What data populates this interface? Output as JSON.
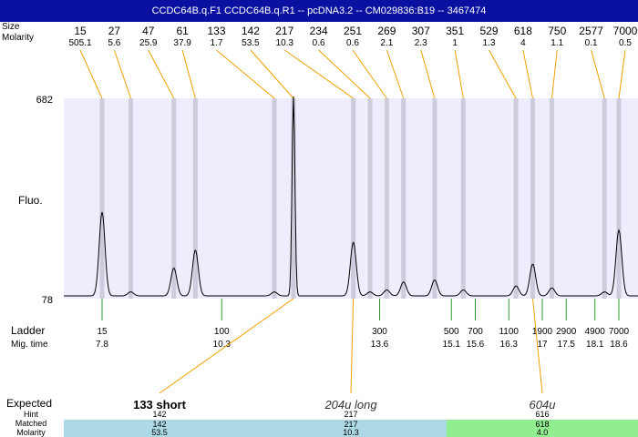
{
  "title": "CCDC64B.q.F1  CCDC64B.q.R1 -- pcDNA3.2 -- CM029836:B19 -- 3467474",
  "colors": {
    "title_bg": "#0a10a0",
    "plot_bg": "#ededfb",
    "band": "#ccccdd",
    "connector": "#f0a000",
    "ladder_tick": "#2a9a2a",
    "trace": "#000000",
    "bar_blue": "#add8e6",
    "bar_green": "#90ee90"
  },
  "labels": {
    "size": "Size",
    "molarity": "Molarity",
    "fluo": "Fluo.",
    "ladder": "Ladder",
    "mig_time": "Mig. time",
    "expected": "Expected",
    "hint": "Hint",
    "matched": "Matched",
    "molarity_row": "Molarity"
  },
  "chart_data": {
    "type": "line",
    "y_axis": {
      "min": 78,
      "max": 682,
      "ticks": [
        682,
        78
      ]
    },
    "x_axis": {
      "min": 7,
      "max": 19,
      "unit": "migration time"
    },
    "peaks": [
      {
        "size": "15",
        "molarity": "505.1",
        "time": 7.8,
        "height": 0.42
      },
      {
        "size": "27",
        "molarity": "5.6",
        "time": 8.4,
        "height": 0.02
      },
      {
        "size": "47",
        "molarity": "25.9",
        "time": 9.3,
        "height": 0.14
      },
      {
        "size": "61",
        "molarity": "37.9",
        "time": 9.75,
        "height": 0.23
      },
      {
        "size": "133",
        "molarity": "1.7",
        "time": 11.4,
        "height": 0.02
      },
      {
        "size": "142",
        "molarity": "53.5",
        "time": 11.8,
        "height": 1.0
      },
      {
        "size": "217",
        "molarity": "10.3",
        "time": 13.05,
        "height": 0.27
      },
      {
        "size": "234",
        "molarity": "0.6",
        "time": 13.4,
        "height": 0.02
      },
      {
        "size": "251",
        "molarity": "0.6",
        "time": 13.75,
        "height": 0.03
      },
      {
        "size": "269",
        "molarity": "2.1",
        "time": 14.1,
        "height": 0.07
      },
      {
        "size": "307",
        "molarity": "2.3",
        "time": 14.75,
        "height": 0.08
      },
      {
        "size": "351",
        "molarity": "1",
        "time": 15.35,
        "height": 0.03
      },
      {
        "size": "529",
        "molarity": "1.3",
        "time": 16.45,
        "height": 0.05
      },
      {
        "size": "618",
        "molarity": "4",
        "time": 16.8,
        "height": 0.16
      },
      {
        "size": "750",
        "molarity": "1.1",
        "time": 17.2,
        "height": 0.04
      },
      {
        "size": "2577",
        "molarity": "0.1",
        "time": 18.3,
        "height": 0.02
      },
      {
        "size": "7000",
        "molarity": "0.5",
        "time": 18.6,
        "height": 0.33
      }
    ],
    "ladder": [
      {
        "size": "15",
        "time": "7.8"
      },
      {
        "size": "100",
        "time": "10.3"
      },
      {
        "size": "300",
        "time": "13.6"
      },
      {
        "size": "500",
        "time": "15.1"
      },
      {
        "size": "700",
        "time": "15.6"
      },
      {
        "size": "1100",
        "time": "16.3"
      },
      {
        "size": "1900",
        "time": "17"
      },
      {
        "size": "2900",
        "time": "17.5"
      },
      {
        "size": "4900",
        "time": "18.1"
      },
      {
        "size": "7000",
        "time": "18.6"
      }
    ],
    "expected": [
      {
        "label": "133 short",
        "bold": true,
        "italic": false,
        "time": 11.8,
        "hint": "142",
        "matched": "142",
        "molarity": "53.5",
        "color": "#add8e6"
      },
      {
        "label": "204u long",
        "bold": false,
        "italic": true,
        "time": 13.05,
        "hint": "217",
        "matched": "217",
        "molarity": "10.3",
        "color": "#add8e6"
      },
      {
        "label": "604u",
        "bold": false,
        "italic": true,
        "time": 16.8,
        "hint": "616",
        "matched": "618",
        "molarity": "4.0",
        "color": "#90ee90"
      }
    ]
  }
}
